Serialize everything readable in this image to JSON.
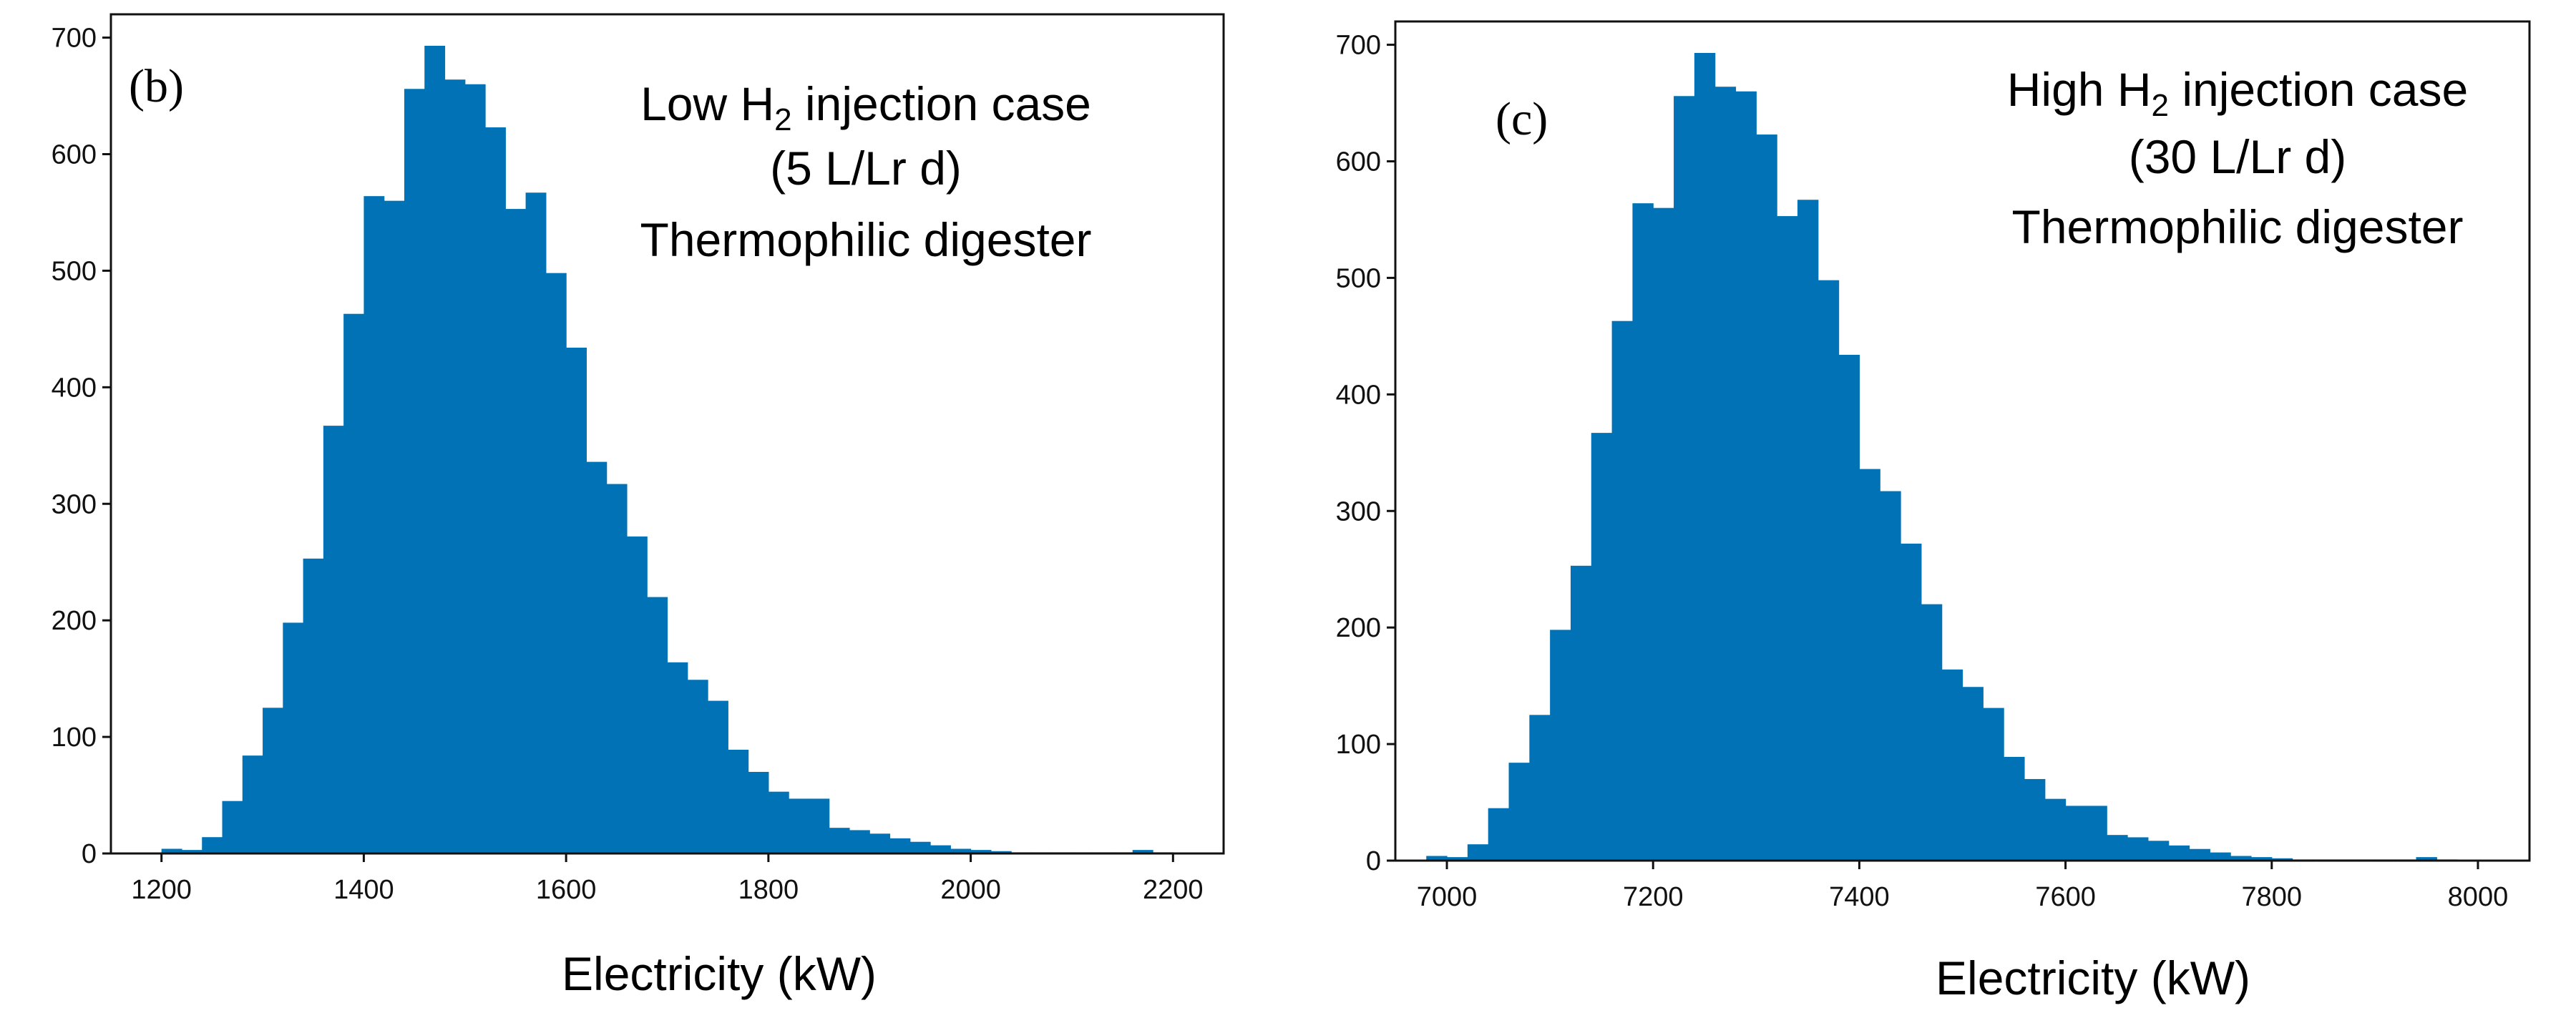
{
  "chart_data": [
    {
      "type": "bar",
      "panel_label": "(b)",
      "annotation": {
        "line1_prefix": "Low H",
        "line1_subscript": "2",
        "line1_suffix": " injection case",
        "line2": "(5 L/Lr d)",
        "line3": "Thermophilic digester"
      },
      "xlabel": "Electricity (kW)",
      "ylabel": "",
      "xlim": [
        1150,
        2250
      ],
      "ylim": [
        0,
        720
      ],
      "xticks": [
        "1200",
        "1400",
        "1600",
        "1800",
        "2000",
        "2200"
      ],
      "yticks": [
        "0",
        "100",
        "200",
        "300",
        "400",
        "500",
        "600",
        "700"
      ],
      "bin_start": 1200,
      "bin_width": 20,
      "values": [
        4,
        3,
        14,
        45,
        84,
        125,
        198,
        253,
        367,
        463,
        564,
        560,
        656,
        693,
        664,
        660,
        623,
        553,
        567,
        498,
        434,
        336,
        317,
        272,
        220,
        164,
        149,
        131,
        89,
        70,
        53,
        47,
        47,
        22,
        20,
        17,
        13,
        10,
        7,
        4,
        3,
        2,
        1,
        1,
        1,
        1,
        1,
        1,
        3,
        1
      ],
      "color": "#0172b6"
    },
    {
      "type": "bar",
      "panel_label": "(c)",
      "annotation": {
        "line1_prefix": "High H",
        "line1_subscript": "2",
        "line1_suffix": " injection case",
        "line2": "(30 L/Lr d)",
        "line3": "Thermophilic digester"
      },
      "xlabel": "Electricity (kW)",
      "ylabel": "",
      "xlim": [
        6950,
        8050
      ],
      "ylim": [
        0,
        720
      ],
      "xticks": [
        "7000",
        "7200",
        "7400",
        "7600",
        "7800",
        "8000"
      ],
      "yticks": [
        "0",
        "100",
        "200",
        "300",
        "400",
        "500",
        "600",
        "700"
      ],
      "bin_start": 6980,
      "bin_width": 20,
      "values": [
        4,
        3,
        14,
        45,
        84,
        125,
        198,
        253,
        367,
        463,
        564,
        560,
        656,
        693,
        664,
        660,
        623,
        553,
        567,
        498,
        434,
        336,
        317,
        272,
        220,
        164,
        149,
        131,
        89,
        70,
        53,
        47,
        47,
        22,
        20,
        17,
        13,
        10,
        7,
        4,
        3,
        2,
        1,
        1,
        1,
        1,
        1,
        1,
        3,
        1
      ],
      "color": "#0172b6"
    }
  ]
}
